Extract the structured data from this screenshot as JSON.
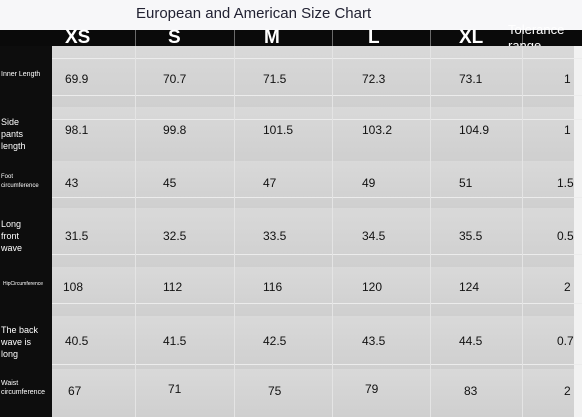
{
  "title": "European and American Size Chart",
  "sizes": [
    "XS",
    "S",
    "M",
    "L",
    "XL"
  ],
  "tolerance_label": "Tolerance range",
  "rows": [
    {
      "label": "Inner Length",
      "values": [
        "69.9",
        "70.7",
        "71.5",
        "72.3",
        "73.1"
      ],
      "tolerance": "1"
    },
    {
      "label": "Side pants length",
      "values": [
        "98.1",
        "99.8",
        "101.5",
        "103.2",
        "104.9"
      ],
      "tolerance": "1"
    },
    {
      "label": "Foot circumference",
      "values": [
        "43",
        "45",
        "47",
        "49",
        "51"
      ],
      "tolerance": "1.5"
    },
    {
      "label": "Long front wave",
      "values": [
        "31.5",
        "32.5",
        "33.5",
        "34.5",
        "35.5"
      ],
      "tolerance": "0.5"
    },
    {
      "label": "HipCircumference",
      "values": [
        "108",
        "112",
        "116",
        "120",
        "124"
      ],
      "tolerance": "2"
    },
    {
      "label": "The back wave is long",
      "values": [
        "40.5",
        "41.5",
        "42.5",
        "43.5",
        "44.5"
      ],
      "tolerance": "0.7"
    },
    {
      "label": "Waist circumference",
      "values": [
        "67",
        "71",
        "75",
        "79",
        "83"
      ],
      "tolerance": "2"
    }
  ]
}
